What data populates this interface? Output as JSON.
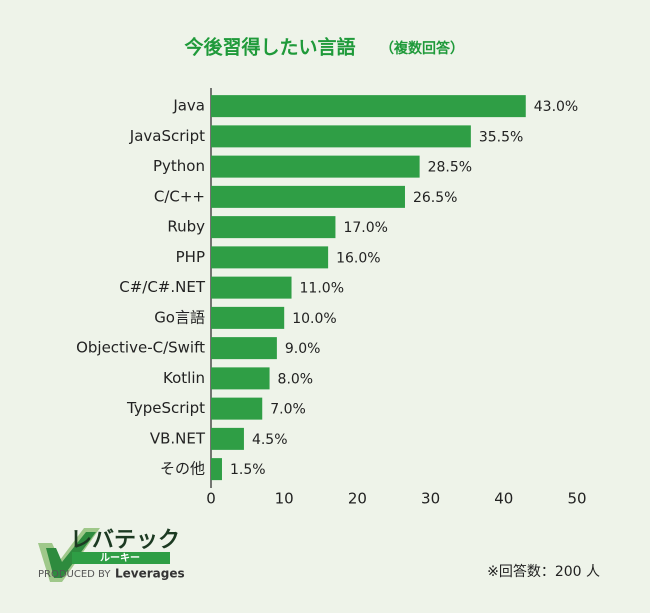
{
  "chart_data": {
    "type": "hbar",
    "title": "今後習得したい言語",
    "subtitle": "（複数回答）",
    "categories": [
      "Java",
      "JavaScript",
      "Python",
      "C/C++",
      "Ruby",
      "PHP",
      "C#/C#.NET",
      "Go言語",
      "Objective-C/Swift",
      "Kotlin",
      "TypeScript",
      "VB.NET",
      "その他"
    ],
    "values": [
      43.0,
      35.5,
      28.5,
      26.5,
      17.0,
      16.0,
      11.0,
      10.0,
      9.0,
      8.0,
      7.0,
      4.5,
      1.5
    ],
    "value_labels": [
      "43.0%",
      "35.5%",
      "28.5%",
      "26.5%",
      "17.0%",
      "16.0%",
      "11.0%",
      "10.0%",
      "9.0%",
      "8.0%",
      "7.0%",
      "4.5%",
      "1.5%"
    ],
    "color": "#2f9e45",
    "xlim": [
      0,
      50
    ],
    "xticks": [
      0,
      10,
      20,
      30,
      40,
      50
    ],
    "note": "※回答数：200 人"
  },
  "logo": {
    "brand": "レバテック",
    "sub": "ルーキー",
    "producer": "PRODUCED BY",
    "company": "Leverages"
  }
}
